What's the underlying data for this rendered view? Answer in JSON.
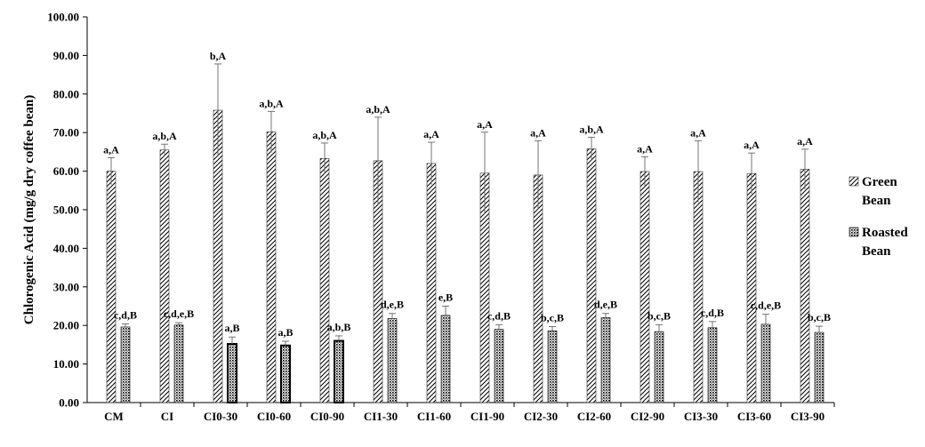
{
  "chart_data": {
    "type": "bar",
    "ylabel": "Chlorogenic Acid (mg/g dry coffee bean)",
    "ylim": [
      0,
      100
    ],
    "yticks": [
      "0.00",
      "10.00",
      "20.00",
      "30.00",
      "40.00",
      "50.00",
      "60.00",
      "70.00",
      "80.00",
      "90.00",
      "100.00"
    ],
    "grid": false,
    "legend_position": "right",
    "categories": [
      "CM",
      "CI",
      "CI0-30",
      "CI0-60",
      "CI0-90",
      "CI1-30",
      "CI1-60",
      "CI1-90",
      "CI2-30",
      "CI2-60",
      "CI2-90",
      "CI3-30",
      "CI3-60",
      "CI3-90"
    ],
    "series": [
      {
        "name": "Green Bean",
        "legend_lines": [
          "Green",
          "Bean"
        ],
        "pattern": "diagonal-hatch",
        "values": [
          60.0,
          65.5,
          75.8,
          70.2,
          63.3,
          62.7,
          62.0,
          59.5,
          59.0,
          65.8,
          59.9,
          59.9,
          59.4,
          60.5
        ],
        "errors": [
          3.5,
          1.5,
          12.0,
          5.3,
          4.0,
          11.3,
          5.5,
          10.6,
          8.9,
          3.0,
          3.8,
          8.0,
          5.3,
          5.2
        ],
        "labels": [
          "a,A",
          "a,b,A",
          "b,A",
          "a,b,A",
          "a,b,A",
          "a,b,A",
          "a,A",
          "a,A",
          "a,A",
          "a,b,A",
          "a,A",
          "a,A",
          "a,A",
          "a,A"
        ]
      },
      {
        "name": "Roasted Bean",
        "legend_lines": [
          "Roasted",
          "Bean"
        ],
        "pattern": "dotted",
        "values": [
          19.6,
          20.1,
          15.2,
          14.8,
          16.0,
          21.8,
          22.6,
          19.0,
          18.6,
          22.0,
          18.4,
          19.4,
          20.3,
          18.2
        ],
        "errors": [
          0.8,
          0.6,
          1.8,
          1.1,
          1.3,
          1.3,
          2.4,
          1.2,
          1.1,
          1.1,
          1.8,
          1.6,
          2.6,
          1.6
        ],
        "labels": [
          "c,d,B",
          "c,d,e,B",
          "a,B",
          "a,B",
          "a,b,B",
          "d,e,B",
          "e,B",
          "c,d,B",
          "b,c,B",
          "d,e,B",
          "b,c,B",
          "c,d,B",
          "c,d,e,B",
          "b,c,B"
        ]
      }
    ]
  }
}
